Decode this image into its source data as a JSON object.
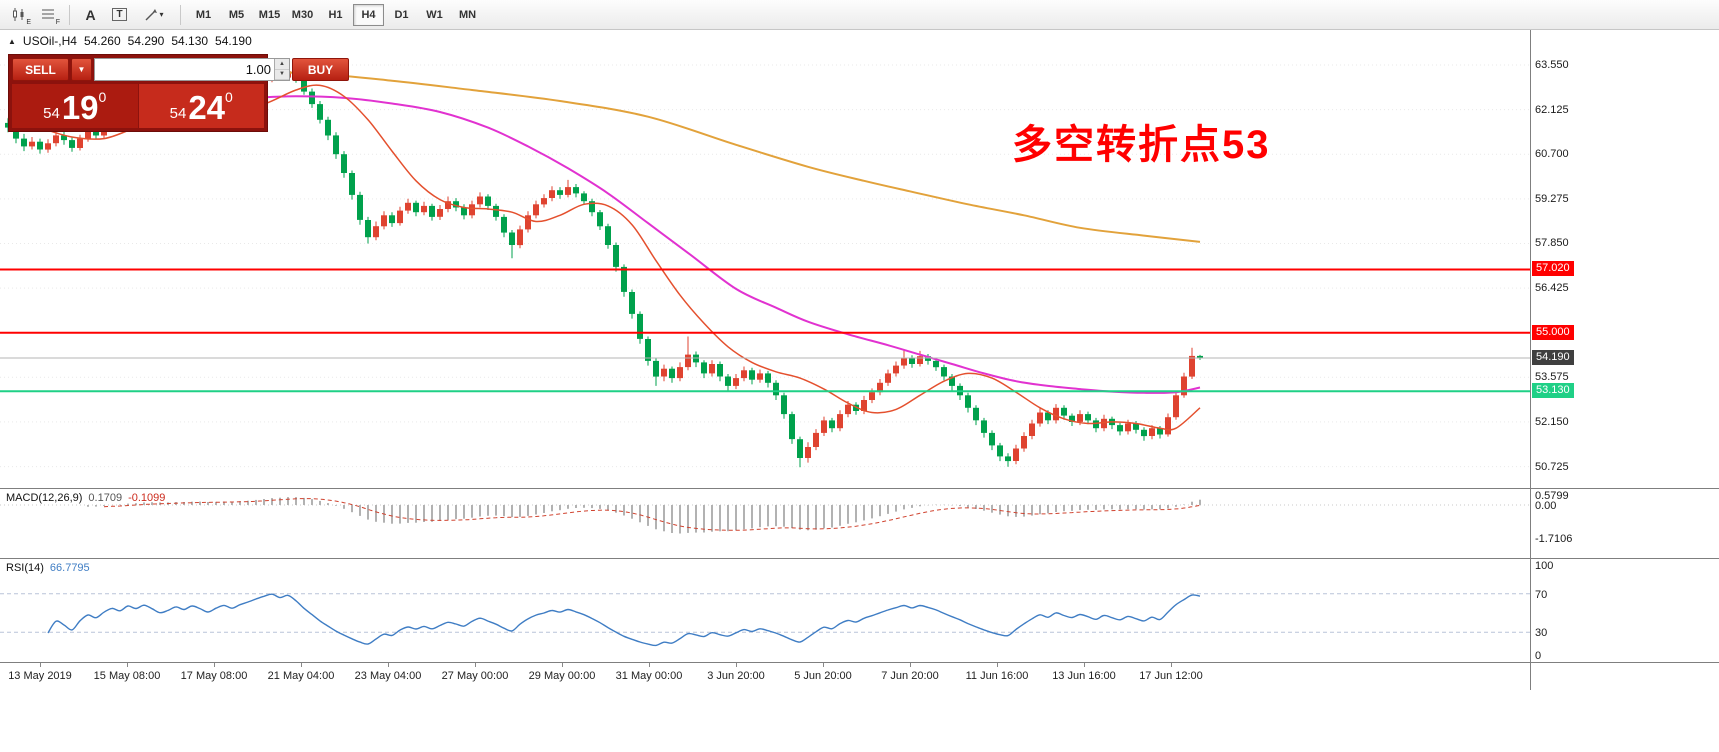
{
  "toolbar": {
    "icon_badge_e": "E",
    "icon_badge_f": "F",
    "text_icon_a": "A",
    "text_icon_t": "T",
    "timeframes": [
      "M1",
      "M5",
      "M15",
      "M30",
      "H1",
      "H4",
      "D1",
      "W1",
      "MN"
    ],
    "active_timeframe": "H4"
  },
  "chart_header": {
    "symbol": "USOil-,H4",
    "open": "54.260",
    "high": "54.290",
    "low": "54.130",
    "close": "54.190"
  },
  "trade_panel": {
    "sell_label": "SELL",
    "buy_label": "BUY",
    "volume": "1.00",
    "sell_price": {
      "prefix": "54",
      "main": "19",
      "sup": "0"
    },
    "buy_price": {
      "prefix": "54",
      "main": "24",
      "sup": "0"
    }
  },
  "annotation": {
    "text": "多空转折点53",
    "color": "#ff0000"
  },
  "indicators": {
    "macd": {
      "label": "MACD(12,26,9)",
      "value_main": "0.1709",
      "value_signal": "-0.1099",
      "axis_labels": [
        {
          "text": "0.5799",
          "value": 0.5799
        },
        {
          "text": "0.00",
          "value": 0
        },
        {
          "text": "-1.7106",
          "value": -1.7106
        }
      ]
    },
    "rsi": {
      "label": "RSI(14)",
      "value": "66.7795",
      "levels": [
        70,
        30
      ],
      "axis_labels": [
        {
          "text": "100",
          "value": 100
        },
        {
          "text": "70",
          "value": 70
        },
        {
          "text": "30",
          "value": 30
        },
        {
          "text": "0",
          "value": 0
        }
      ]
    }
  },
  "time_axis": {
    "labels": [
      "13 May 2019",
      "15 May 08:00",
      "17 May 08:00",
      "21 May 04:00",
      "23 May 04:00",
      "27 May 00:00",
      "29 May 00:00",
      "31 May 00:00",
      "3 Jun 20:00",
      "5 Jun 20:00",
      "7 Jun 20:00",
      "11 Jun 16:00",
      "13 Jun 16:00",
      "17 Jun 12:00"
    ]
  },
  "chart_data": {
    "type": "candlestick",
    "symbol": "USOil-",
    "timeframe": "H4",
    "title": "USOil H4 chart with MACD and RSI",
    "colors": {
      "bull": "#df4330",
      "bear": "#00a14c",
      "rsi": "#3f7dc4",
      "macd_hist": "#b2b2b2",
      "macd_signal": "#d0432f"
    },
    "y_axis": {
      "values": [
        63.55,
        62.125,
        60.7,
        59.275,
        57.85,
        56.425,
        55.0,
        53.575,
        52.15,
        50.725
      ]
    },
    "hlines": [
      {
        "price": 57.02,
        "label": "57.020",
        "color": "#ff0000"
      },
      {
        "price": 55.0,
        "label": "55.000",
        "color": "#ff0000"
      },
      {
        "price": 53.13,
        "label": "53.130",
        "color": "#1fd086"
      }
    ],
    "current_price": {
      "price": 54.19,
      "label": "54.190"
    },
    "moving_averages": [
      {
        "name": "ma-slow",
        "color": "#e2a23b",
        "width": 2,
        "points": [
          [
            0,
            63.5
          ],
          [
            15,
            63.45
          ],
          [
            28,
            63.35
          ],
          [
            38,
            63.28
          ],
          [
            48,
            63.05
          ],
          [
            58,
            62.75
          ],
          [
            69,
            62.4
          ],
          [
            80,
            61.9
          ],
          [
            91,
            61.0
          ],
          [
            100,
            60.3
          ],
          [
            107,
            59.85
          ],
          [
            113,
            59.5
          ],
          [
            120,
            59.1
          ],
          [
            127,
            58.75
          ],
          [
            134,
            58.35
          ],
          [
            142,
            58.1
          ],
          [
            149,
            57.9
          ]
        ]
      },
      {
        "name": "ma-mid",
        "color": "#e132d0",
        "width": 2,
        "points": [
          [
            0,
            62.3
          ],
          [
            10,
            62.35
          ],
          [
            20,
            62.42
          ],
          [
            30,
            62.5
          ],
          [
            36,
            62.55
          ],
          [
            42,
            62.5
          ],
          [
            48,
            62.32
          ],
          [
            54,
            62.05
          ],
          [
            60,
            61.55
          ],
          [
            65,
            60.95
          ],
          [
            70,
            60.25
          ],
          [
            75,
            59.45
          ],
          [
            80,
            58.5
          ],
          [
            85,
            57.55
          ],
          [
            91,
            56.4
          ],
          [
            96,
            55.8
          ],
          [
            100,
            55.35
          ],
          [
            105,
            54.95
          ],
          [
            110,
            54.6
          ],
          [
            114,
            54.3
          ],
          [
            118,
            54.0
          ],
          [
            122,
            53.7
          ],
          [
            126,
            53.45
          ],
          [
            130,
            53.3
          ],
          [
            134,
            53.2
          ],
          [
            138,
            53.12
          ],
          [
            142,
            53.08
          ],
          [
            146,
            53.1
          ],
          [
            149,
            53.25
          ]
        ]
      },
      {
        "name": "ma-fast",
        "color": "#e4502e",
        "width": 1.5,
        "points": [
          [
            0,
            61.9
          ],
          [
            4,
            61.55
          ],
          [
            8,
            61.25
          ],
          [
            12,
            61.2
          ],
          [
            16,
            61.55
          ],
          [
            20,
            61.85
          ],
          [
            24,
            61.95
          ],
          [
            28,
            62.05
          ],
          [
            32,
            62.3
          ],
          [
            36,
            62.75
          ],
          [
            39,
            62.9
          ],
          [
            42,
            62.55
          ],
          [
            45,
            61.8
          ],
          [
            48,
            60.8
          ],
          [
            51,
            59.85
          ],
          [
            54,
            59.25
          ],
          [
            57,
            59.0
          ],
          [
            60,
            58.95
          ],
          [
            63,
            58.85
          ],
          [
            66,
            58.55
          ],
          [
            69,
            58.75
          ],
          [
            72,
            59.1
          ],
          [
            75,
            59.05
          ],
          [
            78,
            58.45
          ],
          [
            81,
            57.3
          ],
          [
            84,
            56.2
          ],
          [
            87,
            55.3
          ],
          [
            90,
            54.55
          ],
          [
            93,
            54.05
          ],
          [
            96,
            53.75
          ],
          [
            99,
            53.55
          ],
          [
            102,
            53.2
          ],
          [
            105,
            52.75
          ],
          [
            108,
            52.45
          ],
          [
            111,
            52.55
          ],
          [
            114,
            53.0
          ],
          [
            117,
            53.45
          ],
          [
            120,
            53.7
          ],
          [
            123,
            53.55
          ],
          [
            126,
            53.1
          ],
          [
            129,
            52.6
          ],
          [
            132,
            52.25
          ],
          [
            135,
            52.1
          ],
          [
            138,
            52.15
          ],
          [
            141,
            52.1
          ],
          [
            144,
            51.95
          ],
          [
            146,
            51.95
          ],
          [
            149,
            52.6
          ]
        ]
      }
    ],
    "candles": [
      [
        61.7,
        61.85,
        61.4,
        61.55
      ],
      [
        61.55,
        61.65,
        61.05,
        61.2
      ],
      [
        61.2,
        61.35,
        60.8,
        60.95
      ],
      [
        60.95,
        61.25,
        60.85,
        61.1
      ],
      [
        61.1,
        61.2,
        60.72,
        60.85
      ],
      [
        60.85,
        61.18,
        60.75,
        61.05
      ],
      [
        61.05,
        61.45,
        60.95,
        61.3
      ],
      [
        61.3,
        61.42,
        61.0,
        61.15
      ],
      [
        61.15,
        61.25,
        60.78,
        60.9
      ],
      [
        60.9,
        61.32,
        60.82,
        61.2
      ],
      [
        61.2,
        61.58,
        61.1,
        61.45
      ],
      [
        61.45,
        61.55,
        61.18,
        61.3
      ],
      [
        61.3,
        61.72,
        61.22,
        61.6
      ],
      [
        61.6,
        61.95,
        61.5,
        61.85
      ],
      [
        61.85,
        61.98,
        61.58,
        61.7
      ],
      [
        61.7,
        62.15,
        61.62,
        62.05
      ],
      [
        62.05,
        62.18,
        61.78,
        61.9
      ],
      [
        61.9,
        62.25,
        61.82,
        62.15
      ],
      [
        62.15,
        62.28,
        61.85,
        61.95
      ],
      [
        61.95,
        62.05,
        61.58,
        61.7
      ],
      [
        61.7,
        61.98,
        61.6,
        61.85
      ],
      [
        61.85,
        62.22,
        61.75,
        62.1
      ],
      [
        62.1,
        62.2,
        61.85,
        61.95
      ],
      [
        61.95,
        62.32,
        61.88,
        62.2
      ],
      [
        62.2,
        62.3,
        61.95,
        62.05
      ],
      [
        62.05,
        62.15,
        61.72,
        61.85
      ],
      [
        61.85,
        62.22,
        61.78,
        62.1
      ],
      [
        62.1,
        62.42,
        62.0,
        62.3
      ],
      [
        62.3,
        62.4,
        62.05,
        62.15
      ],
      [
        62.15,
        62.52,
        62.08,
        62.4
      ],
      [
        62.4,
        62.72,
        62.3,
        62.6
      ],
      [
        62.6,
        62.95,
        62.5,
        62.85
      ],
      [
        62.85,
        63.22,
        62.75,
        63.1
      ],
      [
        63.1,
        63.48,
        63.0,
        63.3
      ],
      [
        63.3,
        63.42,
        63.05,
        63.15
      ],
      [
        63.15,
        63.55,
        63.08,
        63.35
      ],
      [
        63.35,
        63.45,
        62.98,
        63.1
      ],
      [
        63.1,
        63.18,
        62.6,
        62.7
      ],
      [
        62.7,
        62.8,
        62.18,
        62.3
      ],
      [
        62.3,
        62.4,
        61.68,
        61.8
      ],
      [
        61.8,
        61.9,
        61.15,
        61.3
      ],
      [
        61.3,
        61.4,
        60.55,
        60.7
      ],
      [
        60.7,
        60.8,
        59.95,
        60.1
      ],
      [
        60.1,
        60.18,
        59.25,
        59.4
      ],
      [
        59.4,
        59.5,
        58.45,
        58.6
      ],
      [
        58.6,
        58.7,
        57.85,
        58.05
      ],
      [
        58.05,
        58.55,
        57.95,
        58.4
      ],
      [
        58.4,
        58.88,
        58.3,
        58.75
      ],
      [
        58.75,
        58.85,
        58.38,
        58.5
      ],
      [
        58.5,
        59.02,
        58.42,
        58.9
      ],
      [
        58.9,
        59.28,
        58.8,
        59.15
      ],
      [
        59.15,
        59.22,
        58.72,
        58.85
      ],
      [
        58.85,
        59.18,
        58.75,
        59.05
      ],
      [
        59.05,
        59.12,
        58.58,
        58.7
      ],
      [
        58.7,
        59.08,
        58.6,
        58.95
      ],
      [
        58.95,
        59.35,
        58.85,
        59.2
      ],
      [
        59.2,
        59.3,
        58.88,
        59.0
      ],
      [
        59.0,
        59.1,
        58.62,
        58.75
      ],
      [
        58.75,
        59.22,
        58.65,
        59.1
      ],
      [
        59.1,
        59.48,
        59.0,
        59.35
      ],
      [
        59.35,
        59.42,
        58.92,
        59.05
      ],
      [
        59.05,
        59.12,
        58.58,
        58.7
      ],
      [
        58.7,
        58.78,
        58.05,
        58.2
      ],
      [
        58.2,
        58.28,
        57.38,
        57.8
      ],
      [
        57.8,
        58.42,
        57.7,
        58.3
      ],
      [
        58.3,
        58.88,
        58.2,
        58.75
      ],
      [
        58.75,
        59.22,
        58.65,
        59.1
      ],
      [
        59.1,
        59.42,
        59.0,
        59.3
      ],
      [
        59.3,
        59.68,
        59.2,
        59.55
      ],
      [
        59.55,
        59.65,
        59.28,
        59.4
      ],
      [
        59.4,
        59.88,
        59.32,
        59.65
      ],
      [
        59.65,
        59.75,
        59.32,
        59.45
      ],
      [
        59.45,
        59.52,
        59.08,
        59.2
      ],
      [
        59.2,
        59.28,
        58.72,
        58.85
      ],
      [
        58.85,
        58.92,
        58.28,
        58.4
      ],
      [
        58.4,
        58.48,
        57.68,
        57.8
      ],
      [
        57.8,
        57.88,
        56.95,
        57.1
      ],
      [
        57.1,
        57.18,
        56.15,
        56.3
      ],
      [
        56.3,
        56.38,
        55.45,
        55.6
      ],
      [
        55.6,
        55.68,
        54.65,
        54.8
      ],
      [
        54.8,
        54.88,
        53.95,
        54.1
      ],
      [
        54.1,
        54.18,
        53.3,
        53.6
      ],
      [
        53.6,
        53.98,
        53.45,
        53.85
      ],
      [
        53.85,
        53.92,
        53.4,
        53.55
      ],
      [
        53.55,
        54.05,
        53.45,
        53.9
      ],
      [
        53.9,
        54.88,
        53.8,
        54.3
      ],
      [
        54.3,
        54.4,
        53.9,
        54.05
      ],
      [
        54.05,
        54.12,
        53.55,
        53.7
      ],
      [
        53.7,
        54.12,
        53.6,
        54.0
      ],
      [
        54.0,
        54.08,
        53.45,
        53.6
      ],
      [
        53.6,
        53.68,
        53.15,
        53.3
      ],
      [
        53.3,
        53.68,
        53.2,
        53.55
      ],
      [
        53.55,
        53.92,
        53.45,
        53.8
      ],
      [
        53.8,
        53.88,
        53.35,
        53.5
      ],
      [
        53.5,
        53.82,
        53.4,
        53.7
      ],
      [
        53.7,
        53.78,
        53.25,
        53.4
      ],
      [
        53.4,
        53.48,
        52.85,
        53.0
      ],
      [
        53.0,
        53.08,
        52.25,
        52.4
      ],
      [
        52.4,
        52.48,
        51.45,
        51.6
      ],
      [
        51.6,
        51.68,
        50.7,
        51.0
      ],
      [
        51.0,
        51.5,
        50.85,
        51.35
      ],
      [
        51.35,
        51.92,
        51.25,
        51.8
      ],
      [
        51.8,
        52.32,
        51.7,
        52.2
      ],
      [
        52.2,
        52.28,
        51.82,
        51.95
      ],
      [
        51.95,
        52.52,
        51.85,
        52.4
      ],
      [
        52.4,
        52.82,
        52.3,
        52.7
      ],
      [
        52.7,
        52.78,
        52.38,
        52.5
      ],
      [
        52.5,
        52.98,
        52.4,
        52.85
      ],
      [
        52.85,
        53.22,
        52.75,
        53.1
      ],
      [
        53.1,
        53.52,
        53.0,
        53.4
      ],
      [
        53.4,
        53.82,
        53.3,
        53.7
      ],
      [
        53.7,
        54.08,
        53.6,
        53.95
      ],
      [
        53.95,
        54.45,
        53.85,
        54.2
      ],
      [
        54.2,
        54.28,
        53.88,
        54.0
      ],
      [
        54.0,
        54.42,
        53.92,
        54.25
      ],
      [
        54.25,
        54.32,
        53.98,
        54.1
      ],
      [
        54.1,
        54.18,
        53.78,
        53.9
      ],
      [
        53.9,
        53.98,
        53.48,
        53.6
      ],
      [
        53.6,
        53.68,
        53.15,
        53.3
      ],
      [
        53.3,
        53.38,
        52.85,
        53.0
      ],
      [
        53.0,
        53.08,
        52.45,
        52.6
      ],
      [
        52.6,
        52.68,
        52.05,
        52.2
      ],
      [
        52.2,
        52.28,
        51.65,
        51.8
      ],
      [
        51.8,
        51.88,
        51.25,
        51.4
      ],
      [
        51.4,
        51.48,
        50.9,
        51.05
      ],
      [
        51.05,
        51.15,
        50.72,
        50.9
      ],
      [
        50.9,
        51.42,
        50.8,
        51.3
      ],
      [
        51.3,
        51.82,
        51.2,
        51.7
      ],
      [
        51.7,
        52.22,
        51.6,
        52.1
      ],
      [
        52.1,
        52.58,
        52.0,
        52.45
      ],
      [
        52.45,
        52.52,
        52.08,
        52.2
      ],
      [
        52.2,
        52.72,
        52.1,
        52.6
      ],
      [
        52.6,
        52.68,
        52.22,
        52.35
      ],
      [
        52.35,
        52.42,
        52.02,
        52.15
      ],
      [
        52.15,
        52.52,
        52.05,
        52.4
      ],
      [
        52.4,
        52.48,
        52.08,
        52.2
      ],
      [
        52.2,
        52.28,
        51.82,
        51.95
      ],
      [
        51.95,
        52.38,
        51.85,
        52.25
      ],
      [
        52.25,
        52.32,
        51.92,
        52.05
      ],
      [
        52.05,
        52.12,
        51.72,
        51.85
      ],
      [
        51.85,
        52.22,
        51.75,
        52.1
      ],
      [
        52.1,
        52.18,
        51.78,
        51.9
      ],
      [
        51.9,
        51.98,
        51.55,
        51.7
      ],
      [
        51.7,
        52.05,
        51.6,
        51.95
      ],
      [
        51.95,
        52.02,
        51.62,
        51.75
      ],
      [
        51.75,
        52.42,
        51.68,
        52.3
      ],
      [
        52.3,
        53.1,
        52.22,
        53.0
      ],
      [
        53.0,
        53.72,
        52.92,
        53.6
      ],
      [
        53.6,
        54.52,
        53.52,
        54.26
      ],
      [
        54.26,
        54.29,
        54.13,
        54.19
      ]
    ]
  }
}
